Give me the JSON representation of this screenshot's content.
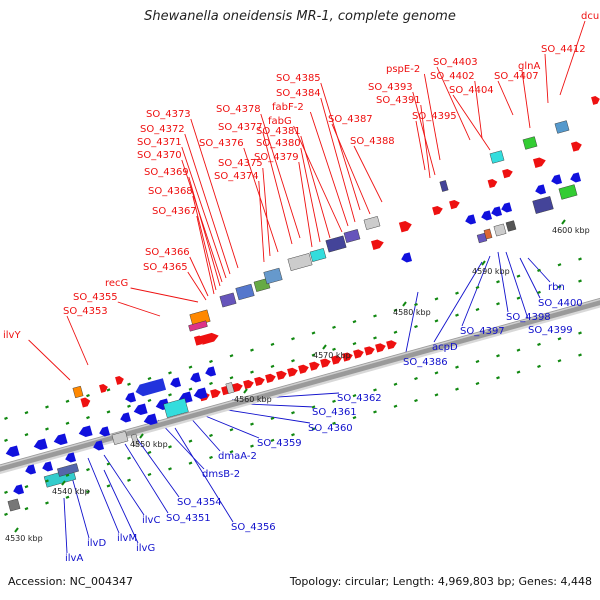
{
  "title": "Shewanella oneidensis MR-1, complete genome",
  "footer": {
    "accession": "Accession: NC_004347",
    "topology": "Topology: circular; Length: 4,969,803 bp; Genes: 4,448"
  },
  "colors": {
    "forward_label": "#ee1111",
    "reverse_label": "#1111cc",
    "backbone": "#9a9a9a",
    "tick": "#118811"
  },
  "scale_labels": [
    "4530 kbp",
    "4540 kbp",
    "4550 kbp",
    "4560 kbp",
    "4570 kbp",
    "4580 kbp",
    "4590 kbp",
    "4600 kbp"
  ],
  "labels_forward": [
    "dcuB",
    "SO_4412",
    "SO_4403",
    "pspE-2",
    "SO_4402",
    "SO_4407",
    "glnA",
    "SO_4393",
    "SO_4404",
    "SO_4391",
    "SO_4395",
    "SO_4385",
    "SO_4384",
    "fabF-2",
    "SO_4378",
    "fabG",
    "SO_4387",
    "SO_4373",
    "SO_4377",
    "SO_4381",
    "SO_4372",
    "SO_4371",
    "SO_4376",
    "SO_4380",
    "SO_4388",
    "SO_4370",
    "SO_4379",
    "SO_4369",
    "SO_4375",
    "SO_4374",
    "SO_4368",
    "SO_4367",
    "SO_4366",
    "SO_4365",
    "recG",
    "SO_4355",
    "SO_4353",
    "ilvY"
  ],
  "labels_reverse": [
    "rbn",
    "SO_4400",
    "SO_4398",
    "SO_4399",
    "SO_4397",
    "acpD",
    "SO_4386",
    "SO_4362",
    "SO_4361",
    "SO_4360",
    "SO_4359",
    "dmaA-2",
    "dmsB-2",
    "SO_4354",
    "SO_4351",
    "SO_4356",
    "ilvC",
    "ilvM",
    "ilvG",
    "ilvD",
    "ilvA"
  ]
}
